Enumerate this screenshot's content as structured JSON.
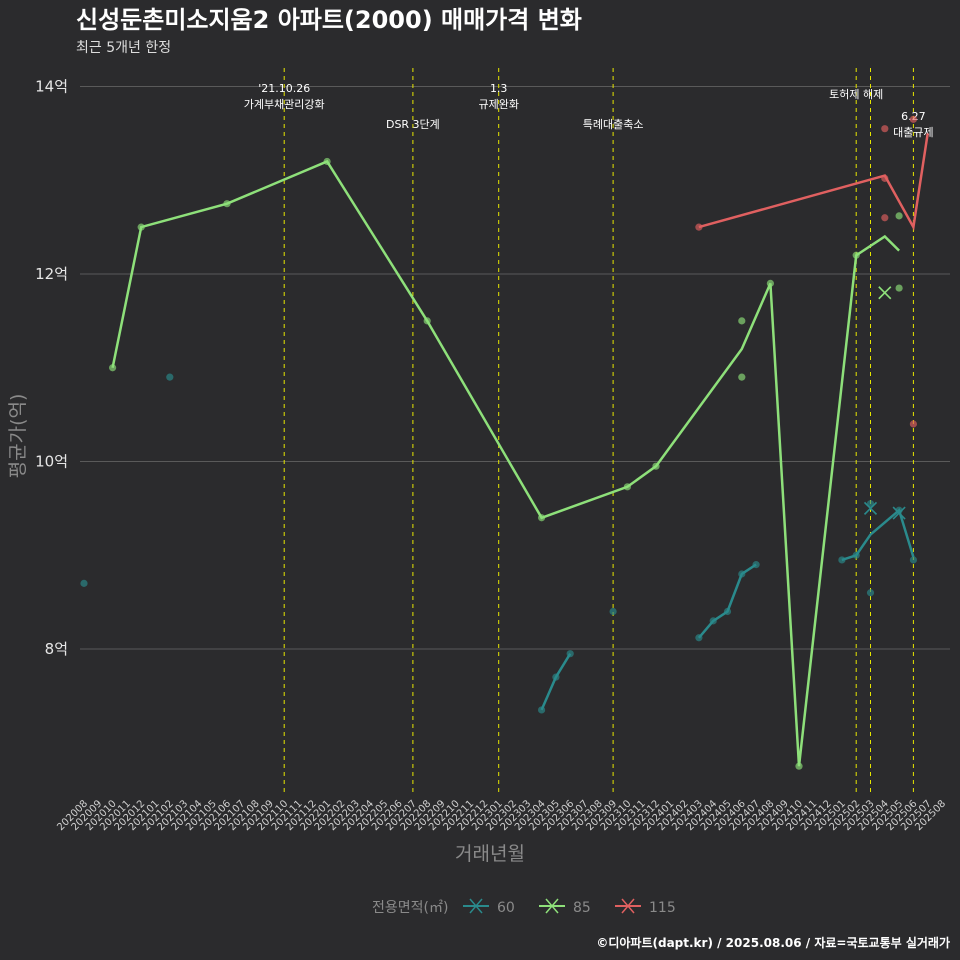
{
  "title": "신성둔촌미소지움2 아파트(2000) 매매가격 변화",
  "subtitle": "최근 5개년 한정",
  "caption": "©디아파트(dapt.kr) / 2025.08.06 / 자료=국토교통부 실거래가",
  "chart_data": {
    "type": "line",
    "xlabel": "거래년월",
    "ylabel": "평균가(억)",
    "ylim": [
      6.45,
      14.3
    ],
    "yticks": [
      8,
      10,
      12,
      14
    ],
    "ytick_labels": [
      "8억",
      "10억",
      "12억",
      "14억"
    ],
    "x_categories": [
      "202008",
      "202009",
      "202010",
      "202011",
      "202012",
      "202101",
      "202102",
      "202103",
      "202104",
      "202105",
      "202106",
      "202107",
      "202108",
      "202109",
      "202110",
      "202111",
      "202112",
      "202201",
      "202202",
      "202203",
      "202204",
      "202205",
      "202206",
      "202207",
      "202208",
      "202209",
      "202210",
      "202211",
      "202212",
      "202301",
      "202302",
      "202303",
      "202304",
      "202305",
      "202306",
      "202307",
      "202308",
      "202309",
      "202310",
      "202311",
      "202312",
      "202401",
      "202402",
      "202403",
      "202404",
      "202405",
      "202406",
      "202407",
      "202408",
      "202409",
      "202410",
      "202411",
      "202412",
      "202501",
      "202502",
      "202503",
      "202504",
      "202505",
      "202506",
      "202507",
      "202508"
    ],
    "legend_title": "전용면적(㎡)",
    "legend_position": "bottom",
    "grid": true,
    "events": [
      {
        "month": "202110",
        "label": "'21.10.26\n가계부채관리강화",
        "row": 0
      },
      {
        "month": "202207",
        "label": "DSR 3단계",
        "row": 2
      },
      {
        "month": "202301",
        "label": "1.3\n규제완화",
        "row": 0
      },
      {
        "month": "202309",
        "label": "특례대출축소",
        "row": 2
      },
      {
        "month": "202502",
        "label": "토허제 해제",
        "row": 1
      },
      {
        "month": "202503",
        "label": "",
        "row": 0
      },
      {
        "month": "202506",
        "label": "6.27\n대출규제",
        "row": 3
      }
    ],
    "series": [
      {
        "name": "60",
        "color": "#2a8a8c",
        "line": [
          {
            "x": "202304",
            "y": 7.35
          },
          {
            "x": "202305",
            "y": 7.7
          },
          {
            "x": "202306",
            "y": 7.95
          },
          {
            "x": "202403",
            "y": 8.12
          },
          {
            "x": "202404",
            "y": 8.3
          },
          {
            "x": "202405",
            "y": 8.4
          },
          {
            "x": "202406",
            "y": 8.8
          },
          {
            "x": "202407",
            "y": 8.9
          },
          {
            "x": "202501",
            "y": 8.95
          },
          {
            "x": "202502",
            "y": 9.0
          },
          {
            "x": "202503",
            "y": 9.22
          },
          {
            "x": "202504",
            "y": 9.35
          },
          {
            "x": "202505",
            "y": 9.48
          },
          {
            "x": "202506",
            "y": 8.98
          }
        ],
        "points": [
          {
            "x": "202008",
            "y": 8.7
          },
          {
            "x": "202102",
            "y": 10.9
          },
          {
            "x": "202309",
            "y": 8.4
          },
          {
            "x": "202304",
            "y": 7.35
          },
          {
            "x": "202305",
            "y": 7.7
          },
          {
            "x": "202306",
            "y": 7.95
          },
          {
            "x": "202403",
            "y": 8.12
          },
          {
            "x": "202404",
            "y": 8.3
          },
          {
            "x": "202405",
            "y": 8.4
          },
          {
            "x": "202406",
            "y": 8.8
          },
          {
            "x": "202407",
            "y": 8.9
          },
          {
            "x": "202501",
            "y": 8.95
          },
          {
            "x": "202502",
            "y": 9.0
          },
          {
            "x": "202503",
            "y": 8.6
          },
          {
            "x": "202503",
            "y": 9.55
          },
          {
            "x": "202505",
            "y": 9.48
          },
          {
            "x": "202506",
            "y": 8.95
          }
        ],
        "crosses": [
          {
            "x": "202503",
            "y": 9.5
          },
          {
            "x": "202505",
            "y": 9.45
          }
        ]
      },
      {
        "name": "85",
        "color": "#8ee07a",
        "line": [
          {
            "x": "202010",
            "y": 11.0
          },
          {
            "x": "202012",
            "y": 12.5
          },
          {
            "x": "202106",
            "y": 12.75
          },
          {
            "x": "202201",
            "y": 13.2
          },
          {
            "x": "202208",
            "y": 11.5
          },
          {
            "x": "202304",
            "y": 9.4
          },
          {
            "x": "202310",
            "y": 9.73
          },
          {
            "x": "202312",
            "y": 9.95
          },
          {
            "x": "202406",
            "y": 11.2
          },
          {
            "x": "202408",
            "y": 11.9
          },
          {
            "x": "202410",
            "y": 6.75
          },
          {
            "x": "202502",
            "y": 12.2
          },
          {
            "x": "202504",
            "y": 12.4
          },
          {
            "x": "202505",
            "y": 12.25
          }
        ],
        "points": [
          {
            "x": "202010",
            "y": 11.0
          },
          {
            "x": "202012",
            "y": 12.5
          },
          {
            "x": "202106",
            "y": 12.75
          },
          {
            "x": "202201",
            "y": 13.2
          },
          {
            "x": "202208",
            "y": 11.5
          },
          {
            "x": "202304",
            "y": 9.4
          },
          {
            "x": "202310",
            "y": 9.73
          },
          {
            "x": "202312",
            "y": 9.95
          },
          {
            "x": "202406",
            "y": 11.5
          },
          {
            "x": "202406",
            "y": 10.9
          },
          {
            "x": "202408",
            "y": 11.9
          },
          {
            "x": "202410",
            "y": 6.75
          },
          {
            "x": "202502",
            "y": 12.2
          },
          {
            "x": "202505",
            "y": 12.62
          },
          {
            "x": "202505",
            "y": 11.85
          }
        ],
        "crosses": [
          {
            "x": "202504",
            "y": 11.8
          }
        ]
      },
      {
        "name": "115",
        "color": "#e06060",
        "line": [
          {
            "x": "202403",
            "y": 12.5
          },
          {
            "x": "202504",
            "y": 13.05
          },
          {
            "x": "202506",
            "y": 12.5
          },
          {
            "x": "202507",
            "y": 13.5
          }
        ],
        "points": [
          {
            "x": "202403",
            "y": 12.5
          },
          {
            "x": "202504",
            "y": 13.02
          },
          {
            "x": "202504",
            "y": 13.55
          },
          {
            "x": "202504",
            "y": 12.6
          },
          {
            "x": "202506",
            "y": 13.65
          },
          {
            "x": "202506",
            "y": 10.4
          }
        ],
        "crosses": []
      }
    ]
  }
}
